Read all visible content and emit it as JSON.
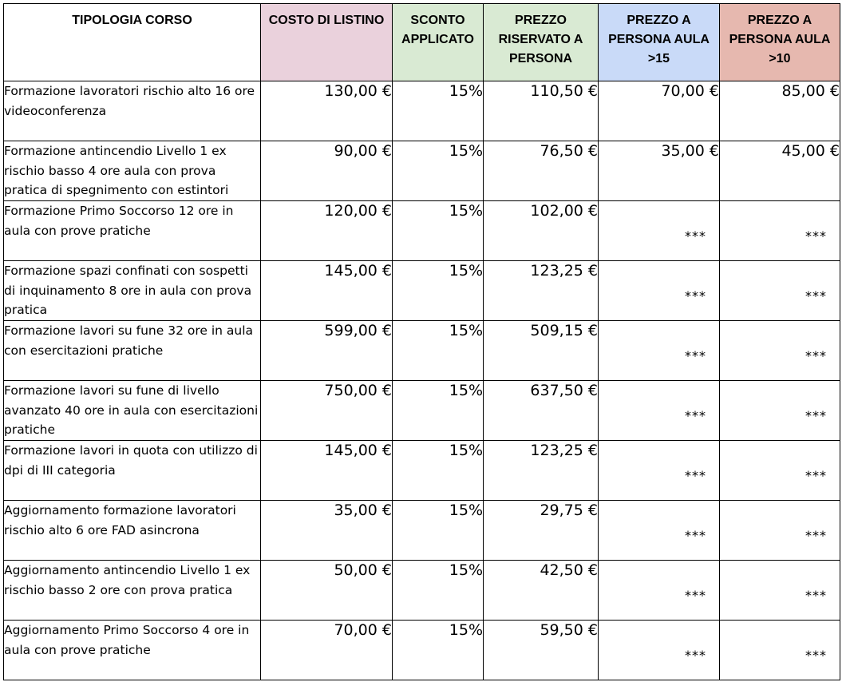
{
  "headers": {
    "course": "TIPOLOGIA CORSO",
    "list_price": "COSTO DI LISTINO",
    "discount": "SCONTO APPLICATO",
    "reserved_price": "PREZZO RISERVATO A PERSONA",
    "price_over_15": "PREZZO A PERSONA AULA >15",
    "price_over_10": "PREZZO A PERSONA AULA >10"
  },
  "rows": [
    {
      "course": "Formazione lavoratori rischio alto 16 ore videoconferenza",
      "list_price": "130,00 €",
      "discount": "15%",
      "reserved_price": "110,50 €",
      "price_over_15": "70,00 €",
      "price_over_10": "85,00 €"
    },
    {
      "course": "Formazione antincendio Livello 1 ex rischio basso 4 ore aula con prova pratica di spegnimento con estintori",
      "list_price": "90,00 €",
      "discount": "15%",
      "reserved_price": "76,50 €",
      "price_over_15": "35,00 €",
      "price_over_10": "45,00 €"
    },
    {
      "course": "Formazione Primo Soccorso 12 ore in aula con prove pratiche",
      "list_price": "120,00 €",
      "discount": "15%",
      "reserved_price": "102,00 €",
      "price_over_15": "***",
      "price_over_10": "***"
    },
    {
      "course": "Formazione spazi confinati con sospetti di inquinamento 8 ore in aula con prova pratica",
      "list_price": "145,00 €",
      "discount": "15%",
      "reserved_price": "123,25 €",
      "price_over_15": "***",
      "price_over_10": "***"
    },
    {
      "course": "Formazione lavori su fune 32 ore in aula con esercitazioni pratiche",
      "list_price": "599,00 €",
      "discount": "15%",
      "reserved_price": "509,15 €",
      "price_over_15": "***",
      "price_over_10": "***"
    },
    {
      "course": "Formazione lavori su fune di livello avanzato 40 ore in aula con esercitazioni pratiche",
      "list_price": "750,00 €",
      "discount": "15%",
      "reserved_price": "637,50 €",
      "price_over_15": "***",
      "price_over_10": "***"
    },
    {
      "course": "Formazione lavori in quota con utilizzo di dpi di III categoria",
      "list_price": "145,00 €",
      "discount": "15%",
      "reserved_price": "123,25 €",
      "price_over_15": "***",
      "price_over_10": "***"
    },
    {
      "course": "Aggiornamento formazione lavoratori rischio alto 6 ore FAD asincrona",
      "list_price": "35,00 €",
      "discount": "15%",
      "reserved_price": "29,75 €",
      "price_over_15": "***",
      "price_over_10": "***"
    },
    {
      "course": "Aggiornamento antincendio Livello 1 ex rischio basso 2 ore con prova pratica",
      "list_price": "50,00 €",
      "discount": "15%",
      "reserved_price": "42,50 €",
      "price_over_15": "***",
      "price_over_10": "***"
    },
    {
      "course": "Aggiornamento Primo Soccorso 4 ore in aula con prove pratiche",
      "list_price": "70,00 €",
      "discount": "15%",
      "reserved_price": "59,50 €",
      "price_over_15": "***",
      "price_over_10": "***"
    }
  ]
}
